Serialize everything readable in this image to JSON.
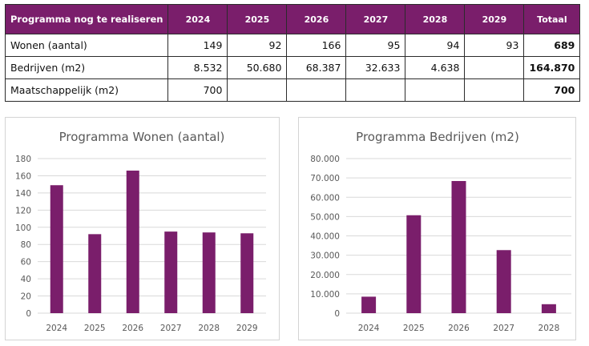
{
  "table": {
    "headers": [
      "Programma nog te realiseren",
      "2024",
      "2025",
      "2026",
      "2027",
      "2028",
      "2029",
      "Totaal"
    ],
    "rows": [
      {
        "label": "Wonen (aantal)",
        "cells": [
          "149",
          "92",
          "166",
          "95",
          "94",
          "93"
        ],
        "total": "689"
      },
      {
        "label": "Bedrijven (m2)",
        "cells": [
          "8.532",
          "50.680",
          "68.387",
          "32.633",
          "4.638",
          ""
        ],
        "total": "164.870"
      },
      {
        "label": "Maatschappelijk (m2)",
        "cells": [
          "700",
          "",
          "",
          "",
          "",
          ""
        ],
        "total": "700"
      }
    ]
  },
  "colors": {
    "header_bg": "#7a1e6b",
    "bar": "#7a1e6b"
  },
  "chart_data": [
    {
      "type": "bar",
      "title": "Programma Wonen (aantal)",
      "categories": [
        "2024",
        "2025",
        "2026",
        "2027",
        "2028",
        "2029"
      ],
      "values": [
        149,
        92,
        166,
        95,
        94,
        93
      ],
      "ylim": [
        0,
        180
      ],
      "yticks": [
        "0",
        "20",
        "40",
        "60",
        "80",
        "100",
        "120",
        "140",
        "160",
        "180"
      ],
      "grid": true
    },
    {
      "type": "bar",
      "title": "Programma Bedrijven (m2)",
      "categories": [
        "2024",
        "2025",
        "2026",
        "2027",
        "2028"
      ],
      "values": [
        8532,
        50680,
        68387,
        32633,
        4638
      ],
      "ylim": [
        0,
        80000
      ],
      "yticks": [
        "0",
        "10.000",
        "20.000",
        "30.000",
        "40.000",
        "50.000",
        "60.000",
        "70.000",
        "80.000"
      ],
      "grid": true
    }
  ]
}
